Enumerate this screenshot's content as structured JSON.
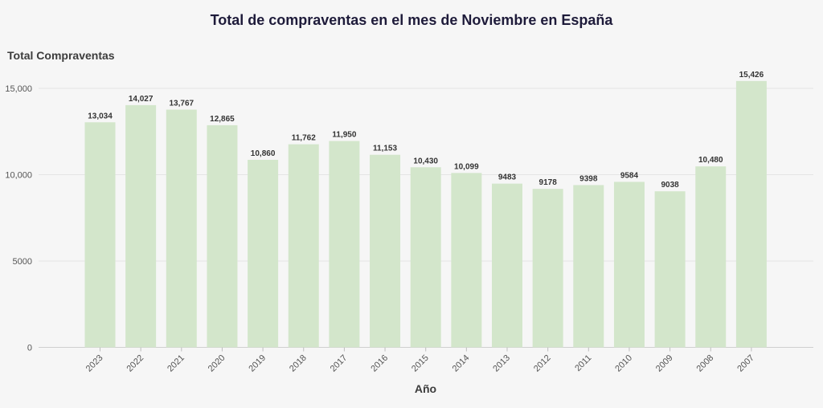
{
  "chart_data": {
    "type": "bar",
    "title": "Total de compraventas en el mes de Noviembre en España",
    "ylabel": "Total Compraventas",
    "xlabel": "Año",
    "categories": [
      "2023",
      "2022",
      "2021",
      "2020",
      "2019",
      "2018",
      "2017",
      "2016",
      "2015",
      "2014",
      "2013",
      "2012",
      "2011",
      "2010",
      "2009",
      "2008",
      "2007"
    ],
    "values": [
      13034,
      14027,
      13767,
      12865,
      10860,
      11762,
      11950,
      11153,
      10430,
      10099,
      9483,
      9178,
      9398,
      9584,
      9038,
      10480,
      15426
    ],
    "value_labels": [
      "13,034",
      "14,027",
      "13,767",
      "12,865",
      "10,860",
      "11,762",
      "11,950",
      "11,153",
      "10,430",
      "10,099",
      "9483",
      "9178",
      "9398",
      "9584",
      "9038",
      "10,480",
      "15,426"
    ],
    "y_ticks": [
      0,
      5000,
      10000,
      15000
    ],
    "y_tick_labels": [
      "0",
      "5000",
      "10,000",
      "15,000"
    ],
    "ylim": [
      0,
      16000
    ],
    "grid": true,
    "bar_color": "#d3e6cb"
  }
}
